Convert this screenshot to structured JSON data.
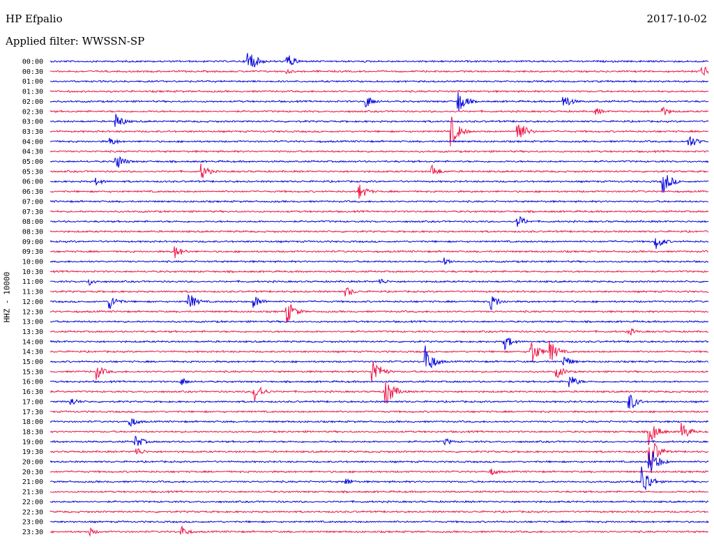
{
  "header": {
    "station": "HP Efpalio",
    "date": "2017-10-02",
    "filter": "Applied filter: WWSSN-SP"
  },
  "chart_data": {
    "type": "line",
    "ylabel": "HHZ - 10000",
    "colors": [
      "#0000dd",
      "#ee1144"
    ],
    "row_labels": [
      "00:00",
      "00:30",
      "01:00",
      "01:30",
      "02:00",
      "02:30",
      "03:00",
      "03:30",
      "04:00",
      "04:30",
      "05:00",
      "05:30",
      "06:00",
      "06:30",
      "07:00",
      "07:30",
      "08:00",
      "08:30",
      "09:00",
      "09:30",
      "10:00",
      "10:30",
      "11:00",
      "11:30",
      "12:00",
      "12:30",
      "13:00",
      "13:30",
      "14:00",
      "14:30",
      "15:00",
      "15:30",
      "16:00",
      "16:30",
      "17:00",
      "17:30",
      "18:00",
      "18:30",
      "19:00",
      "19:30",
      "20:00",
      "20:30",
      "21:00",
      "21:30",
      "22:00",
      "22:30",
      "23:00",
      "23:30"
    ],
    "events": [
      {
        "row": 0,
        "t": 0.3,
        "amp": 22
      },
      {
        "row": 0,
        "t": 0.36,
        "amp": 12
      },
      {
        "row": 1,
        "t": 0.99,
        "amp": 10
      },
      {
        "row": 1,
        "t": 0.36,
        "amp": 4
      },
      {
        "row": 4,
        "t": 0.48,
        "amp": 10
      },
      {
        "row": 4,
        "t": 0.62,
        "amp": 18
      },
      {
        "row": 4,
        "t": 0.78,
        "amp": 12
      },
      {
        "row": 5,
        "t": 0.83,
        "amp": 6
      },
      {
        "row": 5,
        "t": 0.93,
        "amp": 8
      },
      {
        "row": 6,
        "t": 0.1,
        "amp": 12
      },
      {
        "row": 7,
        "t": 0.61,
        "amp": 22
      },
      {
        "row": 7,
        "t": 0.71,
        "amp": 20
      },
      {
        "row": 8,
        "t": 0.97,
        "amp": 12
      },
      {
        "row": 8,
        "t": 0.09,
        "amp": 8
      },
      {
        "row": 10,
        "t": 0.1,
        "amp": 14
      },
      {
        "row": 11,
        "t": 0.23,
        "amp": 12
      },
      {
        "row": 11,
        "t": 0.58,
        "amp": 10
      },
      {
        "row": 12,
        "t": 0.07,
        "amp": 6
      },
      {
        "row": 12,
        "t": 0.93,
        "amp": 20
      },
      {
        "row": 13,
        "t": 0.47,
        "amp": 12
      },
      {
        "row": 16,
        "t": 0.71,
        "amp": 10
      },
      {
        "row": 18,
        "t": 0.92,
        "amp": 12
      },
      {
        "row": 19,
        "t": 0.19,
        "amp": 10
      },
      {
        "row": 20,
        "t": 0.6,
        "amp": 6
      },
      {
        "row": 22,
        "t": 0.06,
        "amp": 6
      },
      {
        "row": 22,
        "t": 0.5,
        "amp": 6
      },
      {
        "row": 23,
        "t": 0.45,
        "amp": 8
      },
      {
        "row": 24,
        "t": 0.09,
        "amp": 12
      },
      {
        "row": 24,
        "t": 0.21,
        "amp": 14
      },
      {
        "row": 24,
        "t": 0.31,
        "amp": 10
      },
      {
        "row": 24,
        "t": 0.67,
        "amp": 12
      },
      {
        "row": 25,
        "t": 0.36,
        "amp": 18
      },
      {
        "row": 27,
        "t": 0.88,
        "amp": 6
      },
      {
        "row": 28,
        "t": 0.69,
        "amp": 12
      },
      {
        "row": 29,
        "t": 0.73,
        "amp": 20
      },
      {
        "row": 29,
        "t": 0.76,
        "amp": 16
      },
      {
        "row": 30,
        "t": 0.57,
        "amp": 24
      },
      {
        "row": 30,
        "t": 0.78,
        "amp": 10
      },
      {
        "row": 31,
        "t": 0.07,
        "amp": 12
      },
      {
        "row": 31,
        "t": 0.49,
        "amp": 22
      },
      {
        "row": 31,
        "t": 0.77,
        "amp": 10
      },
      {
        "row": 32,
        "t": 0.2,
        "amp": 6
      },
      {
        "row": 32,
        "t": 0.79,
        "amp": 10
      },
      {
        "row": 33,
        "t": 0.31,
        "amp": 16
      },
      {
        "row": 33,
        "t": 0.51,
        "amp": 24
      },
      {
        "row": 34,
        "t": 0.03,
        "amp": 8
      },
      {
        "row": 34,
        "t": 0.88,
        "amp": 14
      },
      {
        "row": 36,
        "t": 0.12,
        "amp": 10
      },
      {
        "row": 37,
        "t": 0.96,
        "amp": 14
      },
      {
        "row": 37,
        "t": 0.91,
        "amp": 20
      },
      {
        "row": 38,
        "t": 0.13,
        "amp": 10
      },
      {
        "row": 38,
        "t": 0.6,
        "amp": 6
      },
      {
        "row": 39,
        "t": 0.13,
        "amp": 8
      },
      {
        "row": 39,
        "t": 0.91,
        "amp": 30
      },
      {
        "row": 40,
        "t": 0.91,
        "amp": 26
      },
      {
        "row": 41,
        "t": 0.67,
        "amp": 6
      },
      {
        "row": 42,
        "t": 0.45,
        "amp": 6
      },
      {
        "row": 42,
        "t": 0.9,
        "amp": 24
      },
      {
        "row": 47,
        "t": 0.06,
        "amp": 6
      },
      {
        "row": 47,
        "t": 0.2,
        "amp": 8
      }
    ]
  }
}
